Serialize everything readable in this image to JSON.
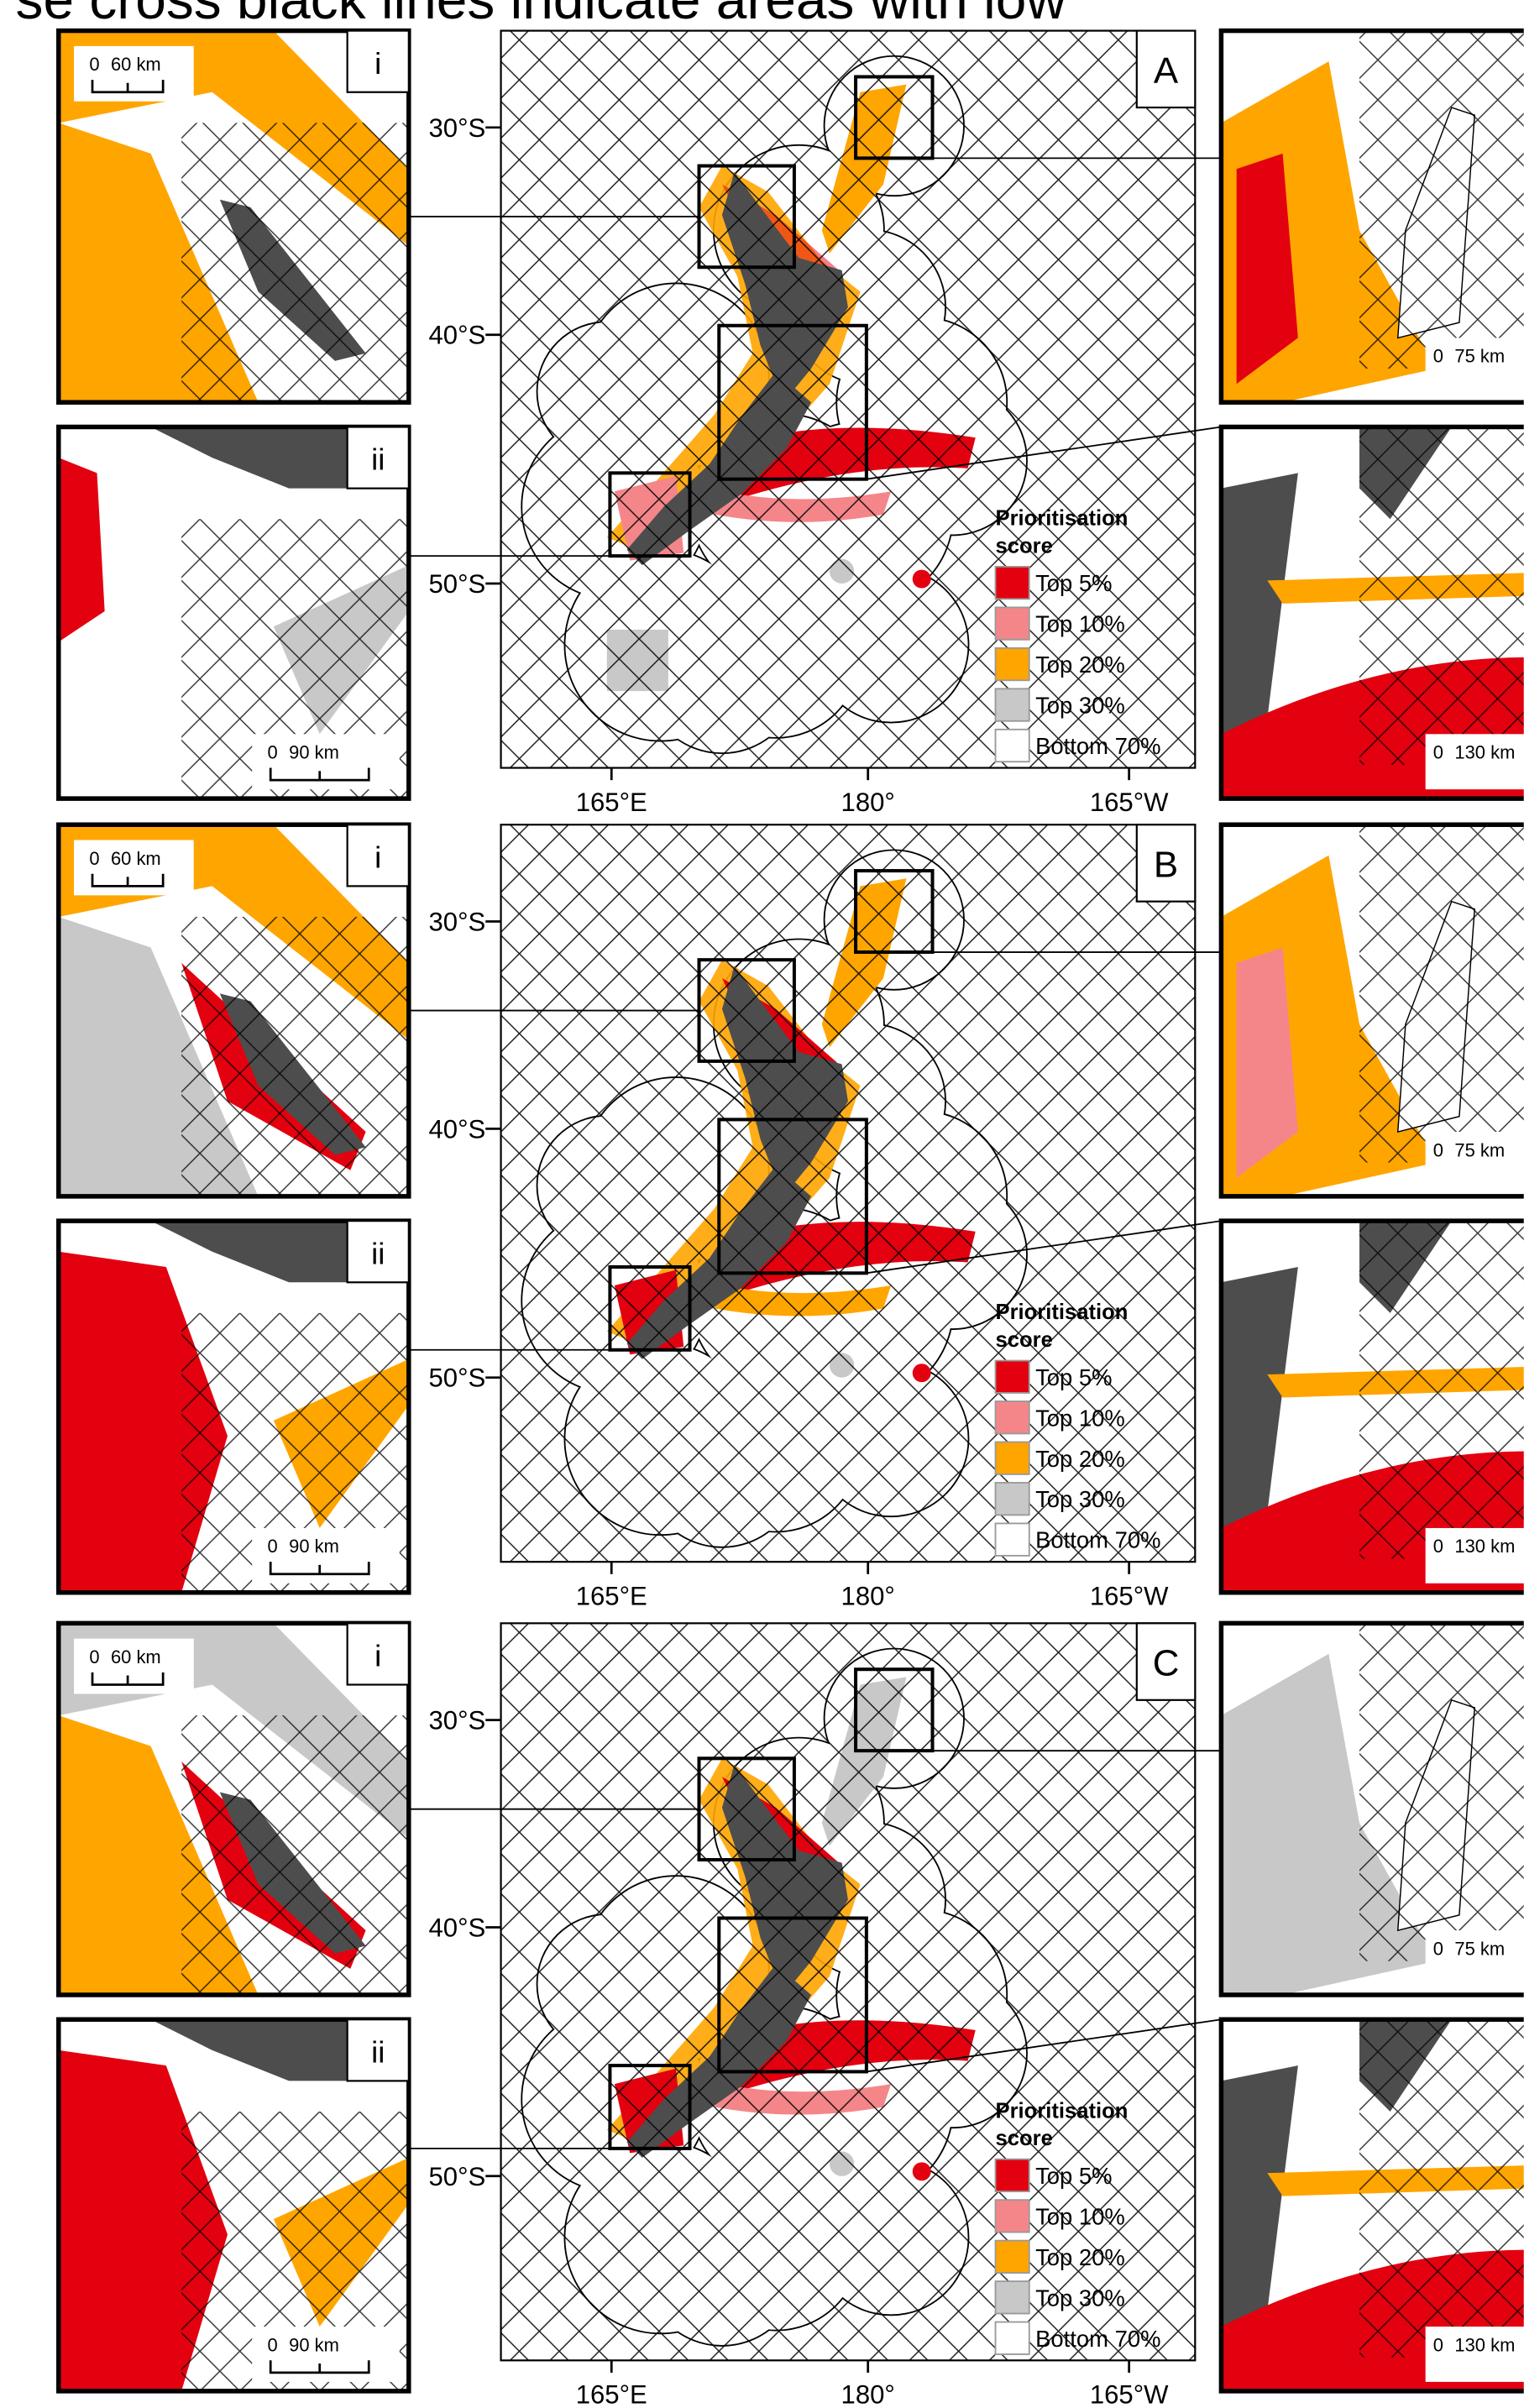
{
  "header": {
    "title": "se cross black lines indicate areas with low"
  },
  "legend": {
    "title": [
      "Prioritisation",
      "score"
    ],
    "items": [
      {
        "label": "Top 5%",
        "color": "#e3000f"
      },
      {
        "label": "Top 10%",
        "color": "#f4868a"
      },
      {
        "label": "Top 20%",
        "color": "#ffa500"
      },
      {
        "label": "Top 30%",
        "color": "#c8c8c8"
      },
      {
        "label": "Bottom 70%",
        "color": "#ffffff"
      }
    ]
  },
  "axes": {
    "lat_labels": [
      "30°S",
      "40°S",
      "50°S"
    ],
    "lon_labels": [
      "165°E",
      "180°",
      "165°W"
    ]
  },
  "panels": [
    {
      "label": "A",
      "left_insets": [
        {
          "label": "i",
          "scale": [
            "0",
            "60 km"
          ]
        },
        {
          "label": "ii",
          "scale": [
            "0",
            "90 km"
          ]
        }
      ],
      "right_insets": [
        {
          "scale": [
            "0",
            "75 km"
          ]
        },
        {
          "scale": [
            "0",
            "130 km"
          ]
        }
      ]
    },
    {
      "label": "B",
      "left_insets": [
        {
          "label": "i",
          "scale": [
            "0",
            "60 km"
          ]
        },
        {
          "label": "ii",
          "scale": [
            "0",
            "90 km"
          ]
        }
      ],
      "right_insets": [
        {
          "scale": [
            "0",
            "75 km"
          ]
        },
        {
          "scale": [
            "0",
            "130 km"
          ]
        }
      ]
    },
    {
      "label": "C",
      "left_insets": [
        {
          "label": "i",
          "scale": [
            "0",
            "60 km"
          ]
        },
        {
          "label": "ii",
          "scale": [
            "0",
            "90 km"
          ]
        }
      ],
      "right_insets": [
        {
          "scale": [
            "0",
            "75 km"
          ]
        },
        {
          "scale": [
            "0",
            "130 km"
          ]
        }
      ]
    }
  ]
}
